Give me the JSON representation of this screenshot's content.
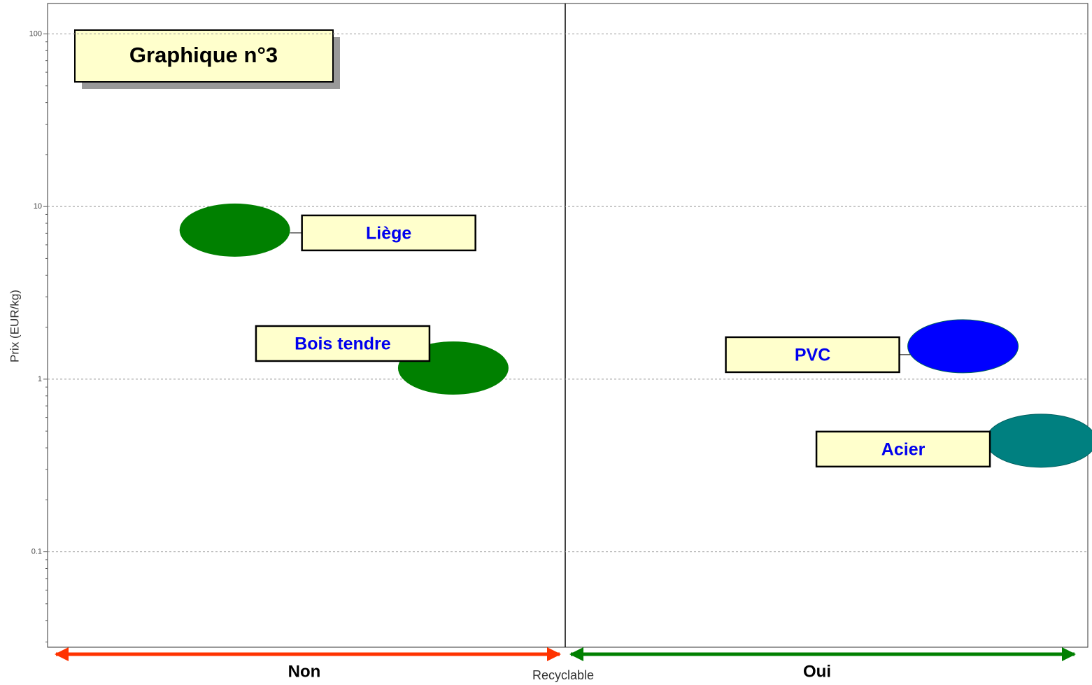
{
  "chart_data": {
    "type": "scatter",
    "title": "Graphique n°3",
    "ylabel": "Prix (EUR/kg)",
    "xlabel": "Recyclable",
    "categories": [
      "Non",
      "Oui"
    ],
    "log_y": true,
    "grid": true,
    "ylim": [
      0.028,
      150
    ],
    "yticks": [
      0.1,
      1,
      10,
      100
    ],
    "xlim": [
      0,
      2
    ],
    "points": [
      {
        "label": "Liège",
        "x": 0.36,
        "y": 7.3,
        "color": "#008000"
      },
      {
        "label": "Bois tendre",
        "x": 0.78,
        "y": 1.16,
        "color": "#008000"
      },
      {
        "label": "PVC",
        "x": 1.76,
        "y": 1.55,
        "color": "#0000ff"
      },
      {
        "label": "Acier",
        "x": 1.91,
        "y": 0.44,
        "color": "#008080"
      }
    ]
  }
}
